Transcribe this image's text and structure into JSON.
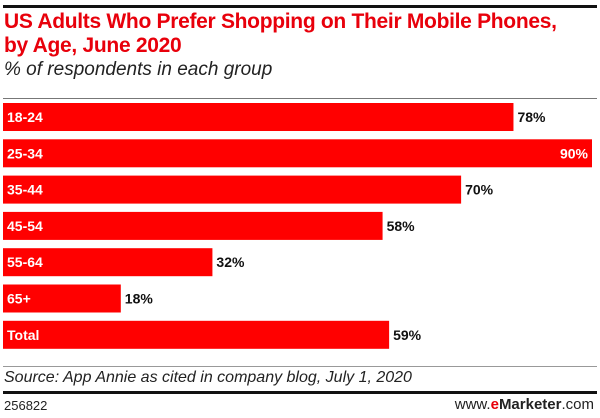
{
  "chart_data": {
    "type": "bar",
    "orientation": "horizontal",
    "title": "US Adults Who Prefer Shopping on Their Mobile Phones, by Age, June 2020",
    "subtitle": "% of respondents in each group",
    "categories": [
      "18-24",
      "25-34",
      "35-44",
      "45-54",
      "55-64",
      "65+",
      "Total"
    ],
    "values": [
      78,
      90,
      70,
      58,
      32,
      18,
      59
    ],
    "data_labels": [
      "78%",
      "90%",
      "70%",
      "58%",
      "32%",
      "18%",
      "59%"
    ],
    "xlim": [
      0,
      90
    ],
    "grid": false,
    "bar_color": "#ff0000"
  },
  "source": "Source: App Annie as cited in company blog, July 1, 2020",
  "chart_id": "256822",
  "brand": {
    "prefix": "www.",
    "e": "e",
    "name": "Marketer",
    ".suffix": "",
    "suffix": ".com"
  }
}
